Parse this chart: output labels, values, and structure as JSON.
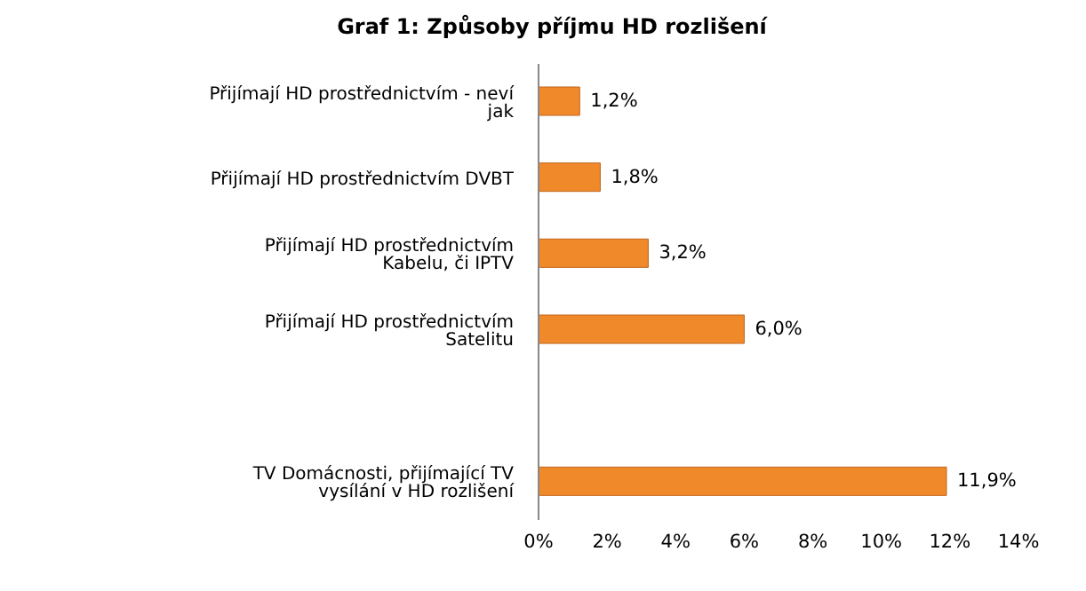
{
  "chart_data": {
    "type": "bar",
    "orientation": "horizontal",
    "title": "Graf 1: Způsoby příjmu HD rozlišení",
    "categories": [
      "Přijímají HD prostřednictvím - neví jak",
      "Přijímají HD prostřednictvím DVBT",
      "Přijímají HD prostřednictvím Kabelu, či IPTV",
      "Přijímají HD prostřednictvím Satelitu",
      null,
      "TV Domácnosti,  přijímající TV vysílání v HD rozlišení"
    ],
    "values": [
      1.2,
      1.8,
      3.2,
      6.0,
      null,
      11.9
    ],
    "value_labels": [
      "1,2%",
      "1,8%",
      "3,2%",
      "6,0%",
      null,
      "11,9%"
    ],
    "color": "#f0892a",
    "xlim": [
      0,
      14
    ],
    "xticks": [
      {
        "value": 0,
        "label": "0%"
      },
      {
        "value": 2,
        "label": "2%"
      },
      {
        "value": 4,
        "label": "4%"
      },
      {
        "value": 6,
        "label": "6%"
      },
      {
        "value": 8,
        "label": "8%"
      },
      {
        "value": 10,
        "label": "10%"
      },
      {
        "value": 12,
        "label": "12%"
      },
      {
        "value": 14,
        "label": "14%"
      }
    ],
    "grid": false,
    "legend": false
  }
}
